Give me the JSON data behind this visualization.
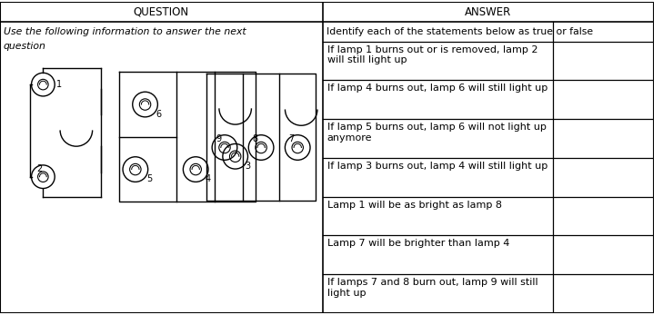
{
  "title_left": "QUESTION",
  "title_right": "ANSWER",
  "question_text_line1": "Use the following information to answer the next",
  "question_text_line2": "question",
  "answer_header": "Identify each of the statements below as true or false",
  "answer_rows": [
    "If lamp 1 burns out or is removed, lamp 2\nwill still light up",
    "If lamp 4 burns out, lamp 6 will still light up",
    "If lamp 5 burns out, lamp 6 will not light up\nanymore",
    "If lamp 3 burns out, lamp 4 will still light up",
    "Lamp 1 will be as bright as lamp 8",
    "Lamp 7 will be brighter than lamp 4",
    "If lamps 7 and 8 burn out, lamp 9 will still\nlight up"
  ],
  "col_split": 0.493,
  "answer_col_split": 0.845,
  "bg_color": "#ffffff",
  "border_color": "#000000",
  "header_font_size": 8.5,
  "body_font_size": 7.8,
  "answer_font_size": 8.5
}
